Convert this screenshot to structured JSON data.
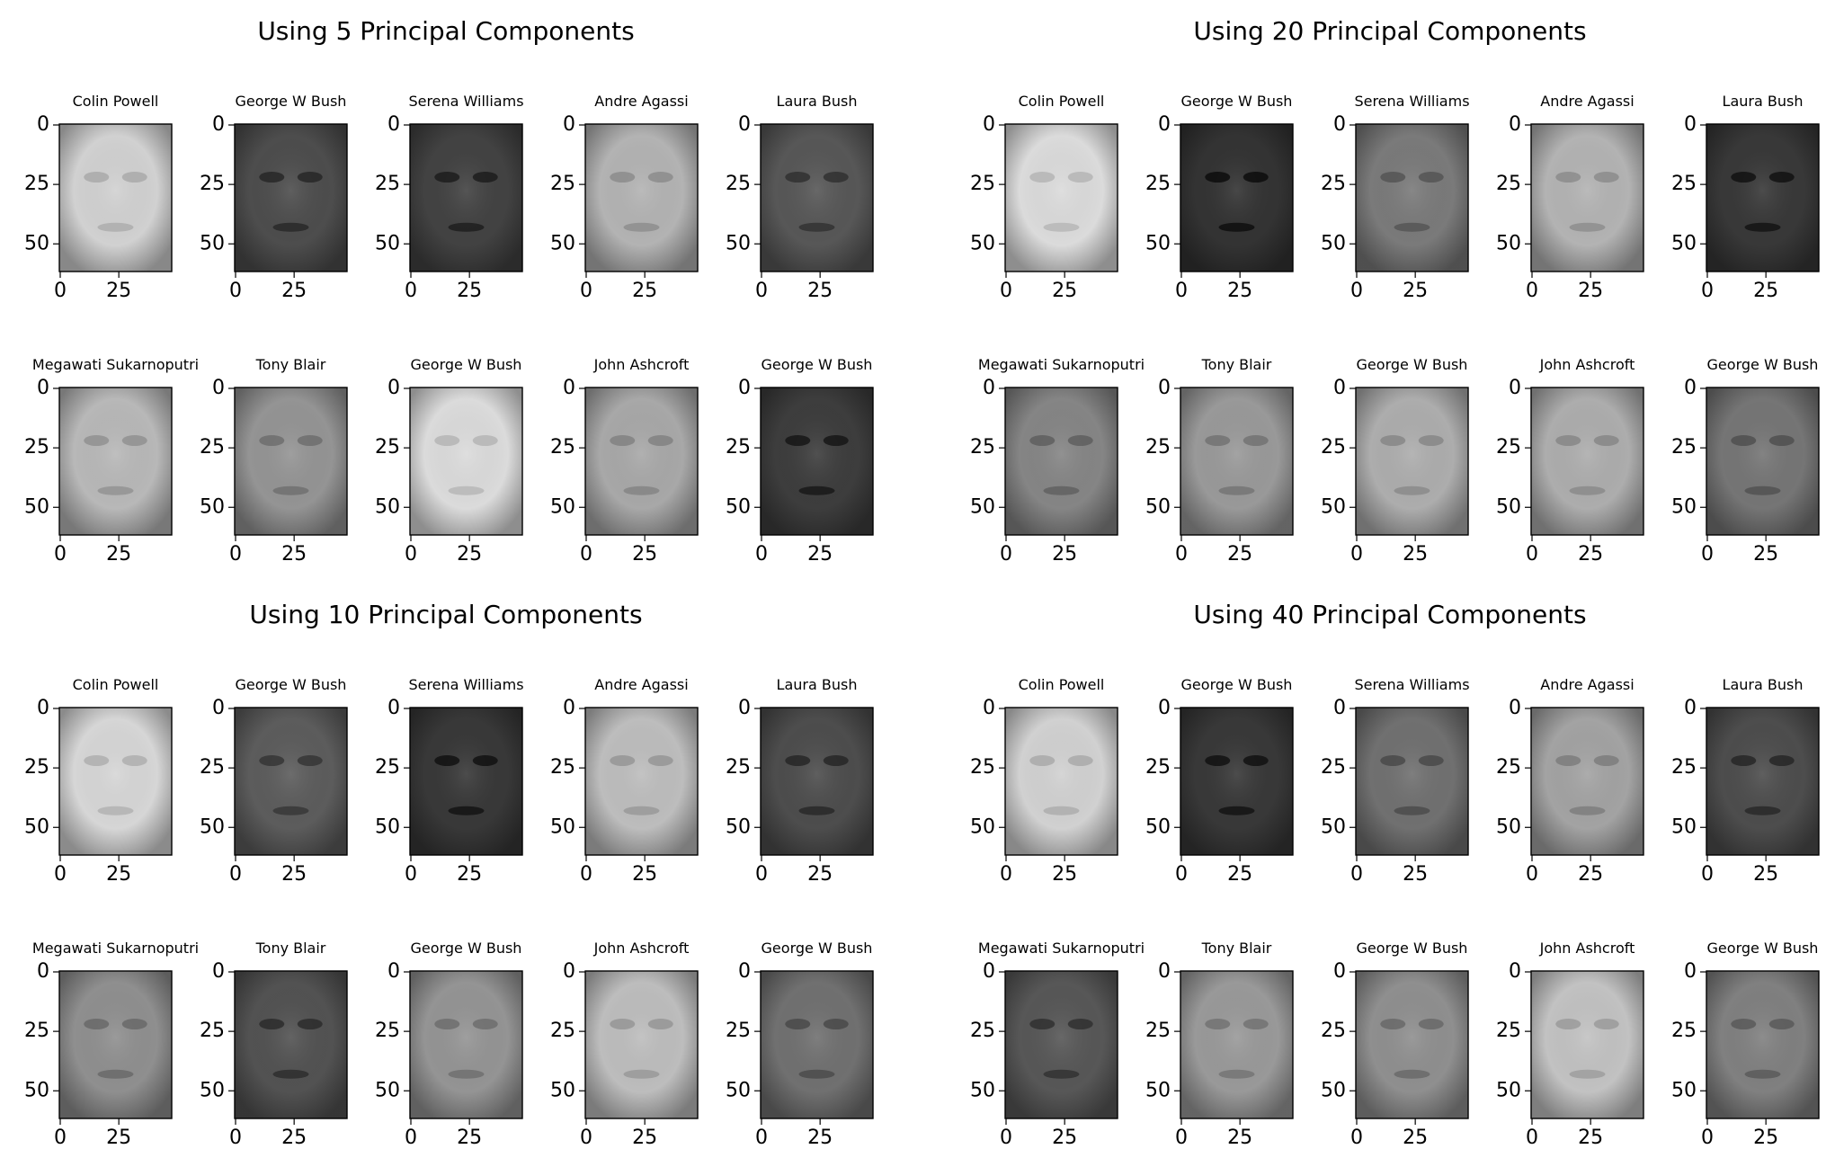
{
  "chart_data": [
    {
      "type": "heatmap",
      "title": "Using 5 Principal Components",
      "x_ticks": [
        0,
        25
      ],
      "y_ticks": [
        0,
        25,
        50
      ],
      "xlim": [
        0,
        47
      ],
      "ylim": [
        0,
        62
      ],
      "panels": [
        {
          "name": "Colin Powell",
          "tone": 0.82
        },
        {
          "name": "George W Bush",
          "tone": 0.3
        },
        {
          "name": "Serena Williams",
          "tone": 0.26
        },
        {
          "name": "Andre Agassi",
          "tone": 0.7
        },
        {
          "name": "Laura Bush",
          "tone": 0.34
        },
        {
          "name": "Megawati Sukarnoputri",
          "tone": 0.72
        },
        {
          "name": "Tony Blair",
          "tone": 0.58
        },
        {
          "name": "George W Bush",
          "tone": 0.86
        },
        {
          "name": "John Ashcroft",
          "tone": 0.66
        },
        {
          "name": "George W Bush",
          "tone": 0.24
        }
      ]
    },
    {
      "type": "heatmap",
      "title": "Using 20 Principal Components",
      "x_ticks": [
        0,
        25
      ],
      "y_ticks": [
        0,
        25,
        50
      ],
      "xlim": [
        0,
        47
      ],
      "ylim": [
        0,
        62
      ],
      "panels": [
        {
          "name": "Colin Powell",
          "tone": 0.86
        },
        {
          "name": "George W Bush",
          "tone": 0.2
        },
        {
          "name": "Serena Williams",
          "tone": 0.48
        },
        {
          "name": "Andre Agassi",
          "tone": 0.7
        },
        {
          "name": "Laura Bush",
          "tone": 0.22
        },
        {
          "name": "Megawati Sukarnoputri",
          "tone": 0.52
        },
        {
          "name": "Tony Blair",
          "tone": 0.6
        },
        {
          "name": "George W Bush",
          "tone": 0.68
        },
        {
          "name": "John Ashcroft",
          "tone": 0.68
        },
        {
          "name": "George W Bush",
          "tone": 0.46
        }
      ]
    },
    {
      "type": "heatmap",
      "title": "Using 10 Principal Components",
      "x_ticks": [
        0,
        25
      ],
      "y_ticks": [
        0,
        25,
        50
      ],
      "xlim": [
        0,
        47
      ],
      "ylim": [
        0,
        62
      ],
      "panels": [
        {
          "name": "Colin Powell",
          "tone": 0.84
        },
        {
          "name": "George W Bush",
          "tone": 0.36
        },
        {
          "name": "Serena Williams",
          "tone": 0.22
        },
        {
          "name": "Andre Agassi",
          "tone": 0.74
        },
        {
          "name": "Laura Bush",
          "tone": 0.3
        },
        {
          "name": "Megawati Sukarnoputri",
          "tone": 0.56
        },
        {
          "name": "Tony Blair",
          "tone": 0.32
        },
        {
          "name": "George W Bush",
          "tone": 0.58
        },
        {
          "name": "John Ashcroft",
          "tone": 0.74
        },
        {
          "name": "George W Bush",
          "tone": 0.44
        }
      ]
    },
    {
      "type": "heatmap",
      "title": "Using 40 Principal Components",
      "x_ticks": [
        0,
        25
      ],
      "y_ticks": [
        0,
        25,
        50
      ],
      "xlim": [
        0,
        47
      ],
      "ylim": [
        0,
        62
      ],
      "panels": [
        {
          "name": "Colin Powell",
          "tone": 0.82
        },
        {
          "name": "George W Bush",
          "tone": 0.22
        },
        {
          "name": "Serena Williams",
          "tone": 0.44
        },
        {
          "name": "Andre Agassi",
          "tone": 0.64
        },
        {
          "name": "Laura Bush",
          "tone": 0.3
        },
        {
          "name": "Megawati Sukarnoputri",
          "tone": 0.34
        },
        {
          "name": "Tony Blair",
          "tone": 0.6
        },
        {
          "name": "George W Bush",
          "tone": 0.56
        },
        {
          "name": "John Ashcroft",
          "tone": 0.76
        },
        {
          "name": "George W Bush",
          "tone": 0.5
        }
      ]
    }
  ]
}
